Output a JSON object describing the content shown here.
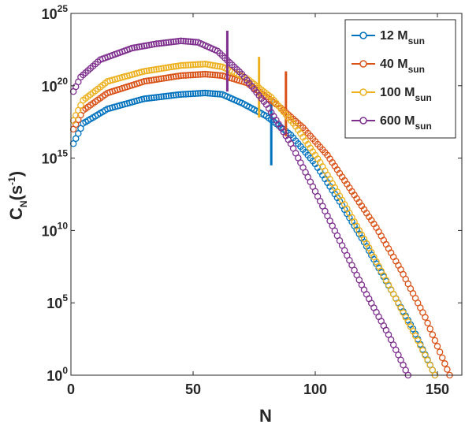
{
  "chart_data": {
    "type": "line",
    "xlabel": "N",
    "ylabel_main": "C",
    "ylabel_sub": "N",
    "ylabel_unit_open": "(s",
    "ylabel_unit_sup": "-1",
    "ylabel_unit_close": ")",
    "xlim": [
      0,
      160
    ],
    "ylim_log10": [
      0,
      25
    ],
    "y_scale": "log",
    "x_ticks": [
      {
        "value": 0,
        "label": "0"
      },
      {
        "value": 50,
        "label": "50"
      },
      {
        "value": 100,
        "label": "100"
      },
      {
        "value": 150,
        "label": "150"
      }
    ],
    "y_ticks": [
      {
        "exp": 0,
        "base": "10",
        "sup": "0"
      },
      {
        "exp": 5,
        "base": "10",
        "sup": "5"
      },
      {
        "exp": 10,
        "base": "10",
        "sup": "10"
      },
      {
        "exp": 15,
        "base": "10",
        "sup": "15"
      },
      {
        "exp": 20,
        "base": "10",
        "sup": "20"
      },
      {
        "exp": 25,
        "base": "10",
        "sup": "25"
      }
    ],
    "grid": false,
    "legend_position": "top-right",
    "marker": "open-circle",
    "series": [
      {
        "name_main": "12 M",
        "name_sub": "sun",
        "color": "#0072BD",
        "points_log10": [
          [
            1,
            16.0
          ],
          [
            5,
            17.4
          ],
          [
            15,
            18.4
          ],
          [
            30,
            19.1
          ],
          [
            45,
            19.4
          ],
          [
            55,
            19.5
          ],
          [
            62,
            19.4
          ],
          [
            70,
            18.8
          ],
          [
            80,
            17.9
          ],
          [
            90,
            16.6
          ],
          [
            100,
            14.6
          ],
          [
            110,
            12.0
          ],
          [
            120,
            9.2
          ],
          [
            130,
            6.2
          ],
          [
            140,
            3.2
          ],
          [
            149,
            0
          ]
        ],
        "marker_line": {
          "x": 82,
          "y_log10": [
            14.5,
            19.1
          ]
        }
      },
      {
        "name_main": "40 M",
        "name_sub": "sun",
        "color": "#D95319",
        "points_log10": [
          [
            1,
            17.0
          ],
          [
            5,
            18.3
          ],
          [
            15,
            19.5
          ],
          [
            30,
            20.3
          ],
          [
            45,
            20.7
          ],
          [
            55,
            20.8
          ],
          [
            62,
            20.7
          ],
          [
            72,
            20.2
          ],
          [
            85,
            18.6
          ],
          [
            95,
            17.1
          ],
          [
            105,
            15.2
          ],
          [
            115,
            12.7
          ],
          [
            125,
            10.2
          ],
          [
            135,
            7.3
          ],
          [
            145,
            4.0
          ],
          [
            155,
            0
          ]
        ],
        "marker_line": {
          "x": 88,
          "y_log10": [
            16.5,
            21.0
          ]
        }
      },
      {
        "name_main": "100 M",
        "name_sub": "sun",
        "color": "#EDB120",
        "points_log10": [
          [
            1,
            17.6
          ],
          [
            5,
            19.0
          ],
          [
            15,
            20.3
          ],
          [
            30,
            21.0
          ],
          [
            45,
            21.4
          ],
          [
            55,
            21.5
          ],
          [
            62,
            21.3
          ],
          [
            72,
            20.5
          ],
          [
            82,
            19.2
          ],
          [
            92,
            17.2
          ],
          [
            102,
            14.7
          ],
          [
            112,
            11.8
          ],
          [
            122,
            8.8
          ],
          [
            132,
            5.6
          ],
          [
            142,
            2.4
          ],
          [
            149,
            0
          ]
        ],
        "marker_line": {
          "x": 77,
          "y_log10": [
            17.8,
            22.0
          ]
        }
      },
      {
        "name_main": "600 M",
        "name_sub": "sun",
        "color": "#7E2F8E",
        "points_log10": [
          [
            1,
            19.6
          ],
          [
            4,
            20.6
          ],
          [
            12,
            21.8
          ],
          [
            25,
            22.6
          ],
          [
            35,
            22.9
          ],
          [
            45,
            23.1
          ],
          [
            52,
            23.0
          ],
          [
            60,
            22.4
          ],
          [
            70,
            20.8
          ],
          [
            80,
            18.7
          ],
          [
            90,
            16.0
          ],
          [
            100,
            12.7
          ],
          [
            110,
            9.3
          ],
          [
            120,
            5.9
          ],
          [
            130,
            2.8
          ],
          [
            138,
            0
          ]
        ],
        "marker_line": {
          "x": 64,
          "y_log10": [
            19.6,
            23.8
          ]
        }
      }
    ]
  }
}
